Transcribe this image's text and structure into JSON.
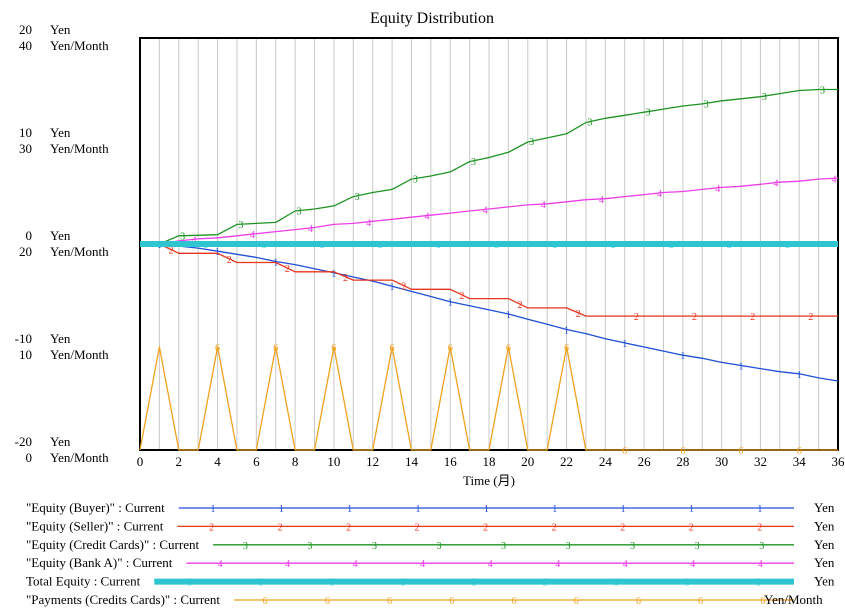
{
  "chart_data": {
    "type": "line",
    "title": "Equity Distribution",
    "xlabel": "Time (月)",
    "xlim": [
      0,
      36
    ],
    "x_ticks": [
      0,
      2,
      4,
      6,
      8,
      10,
      12,
      14,
      16,
      18,
      20,
      22,
      24,
      26,
      28,
      30,
      32,
      34,
      36
    ],
    "grid": "vertical",
    "axes": [
      {
        "unit": "Yen",
        "range": [
          -20,
          20
        ],
        "ticks": [
          {
            "v": 20,
            "label": "20"
          },
          {
            "v": 10,
            "label": "10"
          },
          {
            "v": 0,
            "label": "0"
          },
          {
            "v": -10,
            "label": "-10"
          },
          {
            "v": -20,
            "label": "-20"
          }
        ]
      },
      {
        "unit": "Yen/Month",
        "range": [
          0,
          40
        ],
        "ticks": [
          {
            "v": 40,
            "label": "40"
          },
          {
            "v": 30,
            "label": "30"
          },
          {
            "v": 20,
            "label": "20"
          },
          {
            "v": 10,
            "label": "10"
          },
          {
            "v": 0,
            "label": "0"
          }
        ]
      }
    ],
    "series": [
      {
        "name": "\"Equity (Buyer)\" : Current",
        "marker": "1",
        "unit": "Yen",
        "axis": 0,
        "color": "#1f4fd6",
        "x": [
          0,
          1,
          2,
          3,
          4,
          5,
          6,
          7,
          8,
          9,
          10,
          11,
          12,
          13,
          14,
          15,
          16,
          17,
          18,
          19,
          20,
          21,
          22,
          23,
          24,
          25,
          26,
          27,
          28,
          29,
          30,
          31,
          32,
          33,
          34,
          35,
          36
        ],
        "y": [
          0,
          0,
          -0.2,
          -0.4,
          -0.7,
          -1.0,
          -1.3,
          -1.7,
          -2.0,
          -2.4,
          -2.8,
          -3.2,
          -3.6,
          -4.1,
          -4.6,
          -5.1,
          -5.6,
          -6.0,
          -6.4,
          -6.8,
          -7.3,
          -7.8,
          -8.3,
          -8.7,
          -9.2,
          -9.6,
          -10.0,
          -10.4,
          -10.8,
          -11.1,
          -11.5,
          -11.8,
          -12.1,
          -12.4,
          -12.6,
          -13.0,
          -13.3
        ]
      },
      {
        "name": "\"Equity (Seller)\" : Current",
        "marker": "2",
        "unit": "Yen",
        "axis": 0,
        "color": "#e8341c",
        "x": [
          0,
          1,
          2,
          4,
          5,
          7,
          8,
          10,
          11,
          13,
          14,
          16,
          17,
          19,
          20,
          22,
          23,
          36
        ],
        "y": [
          0,
          0,
          -0.9,
          -0.9,
          -1.8,
          -1.8,
          -2.7,
          -2.7,
          -3.5,
          -3.5,
          -4.4,
          -4.4,
          -5.3,
          -5.3,
          -6.2,
          -6.2,
          -7.0,
          -7.0
        ]
      },
      {
        "name": "\"Equity (Credit Cards)\" : Current",
        "marker": "3",
        "unit": "Yen",
        "axis": 0,
        "color": "#1d9322",
        "x": [
          0,
          1,
          2,
          4,
          5,
          7,
          8,
          9,
          10,
          11,
          12,
          13,
          14,
          15,
          16,
          17,
          18,
          19,
          20,
          21,
          22,
          23,
          24,
          25,
          26,
          27,
          28,
          29,
          30,
          31,
          32,
          33,
          34,
          35,
          36
        ],
        "y": [
          0,
          0,
          0.8,
          0.9,
          1.9,
          2.1,
          3.2,
          3.4,
          3.7,
          4.6,
          5.0,
          5.3,
          6.3,
          6.6,
          7.0,
          8.0,
          8.4,
          8.9,
          9.9,
          10.3,
          10.7,
          11.8,
          12.2,
          12.5,
          12.8,
          13.1,
          13.4,
          13.6,
          13.9,
          14.1,
          14.3,
          14.6,
          14.9,
          15.0,
          15.0
        ]
      },
      {
        "name": "\"Equity (Bank A)\" : Current",
        "marker": "4",
        "unit": "Yen",
        "axis": 0,
        "color": "#ee3de8",
        "x": [
          0,
          1,
          2,
          3,
          4,
          5,
          6,
          7,
          8,
          9,
          10,
          11,
          12,
          13,
          14,
          15,
          16,
          17,
          18,
          19,
          20,
          21,
          22,
          23,
          24,
          25,
          26,
          27,
          28,
          29,
          30,
          31,
          32,
          33,
          34,
          35,
          36
        ],
        "y": [
          0,
          0,
          0.3,
          0.5,
          0.6,
          0.8,
          1.0,
          1.2,
          1.4,
          1.6,
          1.9,
          2.0,
          2.2,
          2.4,
          2.6,
          2.8,
          3.0,
          3.2,
          3.4,
          3.6,
          3.8,
          3.9,
          4.1,
          4.3,
          4.4,
          4.6,
          4.8,
          5.0,
          5.1,
          5.3,
          5.5,
          5.6,
          5.8,
          6.0,
          6.1,
          6.3,
          6.4
        ]
      },
      {
        "name": "Total Equity : Current",
        "marker": "5",
        "unit": "Yen",
        "axis": 0,
        "color": "#2ec4d0",
        "thick": true,
        "x": [
          0,
          36
        ],
        "y": [
          0,
          0
        ]
      },
      {
        "name": "\"Payments (Credits Cards)\" : Current",
        "marker": "6",
        "unit": "Yen/Month",
        "axis": 1,
        "color": "#f1a21e",
        "x": [
          0,
          1,
          2,
          3,
          4,
          5,
          6,
          7,
          8,
          9,
          10,
          11,
          12,
          13,
          14,
          15,
          16,
          17,
          18,
          19,
          20,
          21,
          22,
          23,
          36
        ],
        "y": [
          0,
          10,
          0,
          0,
          10,
          0,
          0,
          10,
          0,
          0,
          10,
          0,
          0,
          10,
          0,
          0,
          10,
          0,
          0,
          10,
          0,
          0,
          10,
          0,
          0
        ]
      }
    ]
  }
}
